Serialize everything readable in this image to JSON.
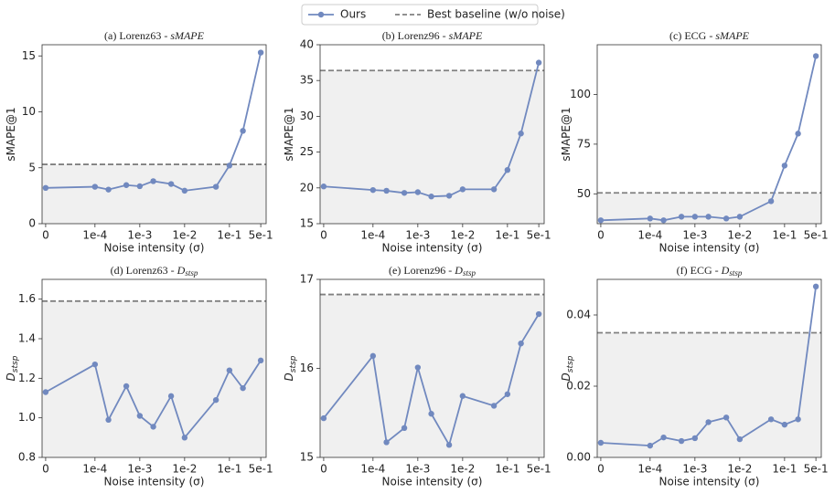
{
  "chart_data": [
    {
      "type": "line",
      "title": "(a) Lorenz63 - ",
      "title_symbol": "sMAPE",
      "ylabel": "sMAPE@1",
      "xlabel": "Noise intensity (σ)",
      "x": [
        0,
        0.0001,
        0.0002,
        0.0005,
        0.001,
        0.002,
        0.005,
        0.01,
        0.05,
        0.1,
        0.2,
        0.5
      ],
      "xlim": [
        0,
        0.5
      ],
      "xscale": "symlog",
      "xticks": [
        {
          "value": 0,
          "label": "0"
        },
        {
          "value": 0.0001,
          "label": "1e-4"
        },
        {
          "value": 0.001,
          "label": "1e-3"
        },
        {
          "value": 0.01,
          "label": "1e-2"
        },
        {
          "value": 0.1,
          "label": "1e-1"
        },
        {
          "value": 0.5,
          "label": "5e-1"
        }
      ],
      "ylim": [
        0,
        16
      ],
      "yticks": [
        0,
        5,
        10,
        15
      ],
      "series": [
        {
          "name": "Ours",
          "color": "#7189bf",
          "values": [
            3.2,
            3.3,
            3.05,
            3.45,
            3.35,
            3.8,
            3.55,
            2.95,
            3.3,
            5.2,
            8.3,
            15.3
          ]
        }
      ],
      "baseline": {
        "name": "Best baseline (w/o noise)",
        "value": 5.3,
        "color": "#808080"
      }
    },
    {
      "type": "line",
      "title": "(b) Lorenz96 - ",
      "title_symbol": "sMAPE",
      "ylabel": "sMAPE@1",
      "xlabel": "Noise intensity (σ)",
      "x": [
        0,
        0.0001,
        0.0002,
        0.0005,
        0.001,
        0.002,
        0.005,
        0.01,
        0.05,
        0.1,
        0.2,
        0.5
      ],
      "xlim": [
        0,
        0.5
      ],
      "xscale": "symlog",
      "xticks": [
        {
          "value": 0,
          "label": "0"
        },
        {
          "value": 0.0001,
          "label": "1e-4"
        },
        {
          "value": 0.001,
          "label": "1e-3"
        },
        {
          "value": 0.01,
          "label": "1e-2"
        },
        {
          "value": 0.1,
          "label": "1e-1"
        },
        {
          "value": 0.5,
          "label": "5e-1"
        }
      ],
      "ylim": [
        15,
        40
      ],
      "yticks": [
        15,
        20,
        25,
        30,
        35,
        40
      ],
      "series": [
        {
          "color": "#7189bf",
          "values": [
            20.2,
            19.7,
            19.6,
            19.3,
            19.4,
            18.8,
            18.9,
            19.8,
            19.8,
            22.5,
            27.6,
            37.5
          ]
        }
      ],
      "baseline": {
        "value": 36.4,
        "color": "#808080"
      }
    },
    {
      "type": "line",
      "title": "(c) ECG - ",
      "title_symbol": "sMAPE",
      "ylabel": "sMAPE@1",
      "xlabel": "Noise intensity (σ)",
      "x": [
        0,
        0.0001,
        0.0002,
        0.0005,
        0.001,
        0.002,
        0.005,
        0.01,
        0.05,
        0.1,
        0.2,
        0.5
      ],
      "xlim": [
        0,
        0.5
      ],
      "xscale": "symlog",
      "xticks": [
        {
          "value": 0,
          "label": "0"
        },
        {
          "value": 0.0001,
          "label": "1e-4"
        },
        {
          "value": 0.001,
          "label": "1e-3"
        },
        {
          "value": 0.01,
          "label": "1e-2"
        },
        {
          "value": 0.1,
          "label": "1e-1"
        },
        {
          "value": 0.5,
          "label": "5e-1"
        }
      ],
      "ylim": [
        35,
        125
      ],
      "yticks": [
        50,
        75,
        100
      ],
      "series": [
        {
          "color": "#7189bf",
          "values": [
            36.7,
            37.6,
            36.7,
            38.5,
            38.5,
            38.5,
            37.6,
            38.5,
            46.3,
            64.2,
            80.3,
            119.3
          ]
        }
      ],
      "baseline": {
        "value": 50.5,
        "color": "#808080"
      }
    },
    {
      "type": "line",
      "title": "(d) Lorenz63 - ",
      "title_symbol": "D",
      "title_symbol_sub": "stsp",
      "ylabel": "D",
      "ylabel_sub": "stsp",
      "xlabel": "Noise intensity (σ)",
      "x": [
        0,
        0.0001,
        0.0002,
        0.0005,
        0.001,
        0.002,
        0.005,
        0.01,
        0.05,
        0.1,
        0.2,
        0.5
      ],
      "xlim": [
        0,
        0.5
      ],
      "xscale": "symlog",
      "xticks": [
        {
          "value": 0,
          "label": "0"
        },
        {
          "value": 0.0001,
          "label": "1e-4"
        },
        {
          "value": 0.001,
          "label": "1e-3"
        },
        {
          "value": 0.01,
          "label": "1e-2"
        },
        {
          "value": 0.1,
          "label": "1e-1"
        },
        {
          "value": 0.5,
          "label": "5e-1"
        }
      ],
      "ylim": [
        0.8,
        1.7
      ],
      "yticks": [
        0.8,
        {
          "value": 1,
          "label": "1.0"
        },
        1.2,
        1.4,
        1.6
      ],
      "series": [
        {
          "color": "#7189bf",
          "values": [
            1.13,
            1.27,
            0.99,
            1.16,
            1.01,
            0.955,
            1.11,
            0.9,
            1.09,
            1.24,
            1.15,
            1.29
          ]
        }
      ],
      "baseline": {
        "value": 1.59,
        "color": "#808080"
      }
    },
    {
      "type": "line",
      "title": "(e) Lorenz96 - ",
      "title_symbol": "D",
      "title_symbol_sub": "stsp",
      "ylabel": "D",
      "ylabel_sub": "stsp",
      "xlabel": "Noise intensity (σ)",
      "x": [
        0,
        0.0001,
        0.0002,
        0.0005,
        0.001,
        0.002,
        0.005,
        0.01,
        0.05,
        0.1,
        0.2,
        0.5
      ],
      "xlim": [
        0,
        0.5
      ],
      "xscale": "symlog",
      "xticks": [
        {
          "value": 0,
          "label": "0"
        },
        {
          "value": 0.0001,
          "label": "1e-4"
        },
        {
          "value": 0.001,
          "label": "1e-3"
        },
        {
          "value": 0.01,
          "label": "1e-2"
        },
        {
          "value": 0.1,
          "label": "1e-1"
        },
        {
          "value": 0.5,
          "label": "5e-1"
        }
      ],
      "ylim": [
        15,
        17
      ],
      "yticks": [
        15,
        16,
        17
      ],
      "series": [
        {
          "color": "#7189bf",
          "values": [
            15.44,
            16.14,
            15.17,
            15.33,
            16.01,
            15.49,
            15.14,
            15.69,
            15.58,
            15.71,
            16.28,
            16.61
          ]
        }
      ],
      "baseline": {
        "value": 16.83,
        "color": "#808080"
      }
    },
    {
      "type": "line",
      "title": "(f) ECG - ",
      "title_symbol": "D",
      "title_symbol_sub": "stsp",
      "ylabel": "D",
      "ylabel_sub": "stsp",
      "xlabel": "Noise intensity (σ)",
      "x": [
        0,
        0.0001,
        0.0002,
        0.0005,
        0.001,
        0.002,
        0.005,
        0.01,
        0.05,
        0.1,
        0.2,
        0.5
      ],
      "xlim": [
        0,
        0.5
      ],
      "xscale": "symlog",
      "xticks": [
        {
          "value": 0,
          "label": "0"
        },
        {
          "value": 0.0001,
          "label": "1e-4"
        },
        {
          "value": 0.001,
          "label": "1e-3"
        },
        {
          "value": 0.01,
          "label": "1e-2"
        },
        {
          "value": 0.1,
          "label": "1e-1"
        },
        {
          "value": 0.5,
          "label": "5e-1"
        }
      ],
      "ylim": [
        0,
        0.05
      ],
      "yticks": [
        {
          "value": 0,
          "label": "0.00"
        },
        {
          "value": 0.02,
          "label": "0.02"
        },
        {
          "value": 0.04,
          "label": "0.04"
        }
      ],
      "series": [
        {
          "color": "#7189bf",
          "values": [
            0.0041,
            0.0033,
            0.0056,
            0.0046,
            0.0054,
            0.0099,
            0.0112,
            0.0051,
            0.0107,
            0.0092,
            0.0107,
            0.048
          ]
        }
      ],
      "baseline": {
        "value": 0.035,
        "color": "#808080"
      }
    }
  ]
}
